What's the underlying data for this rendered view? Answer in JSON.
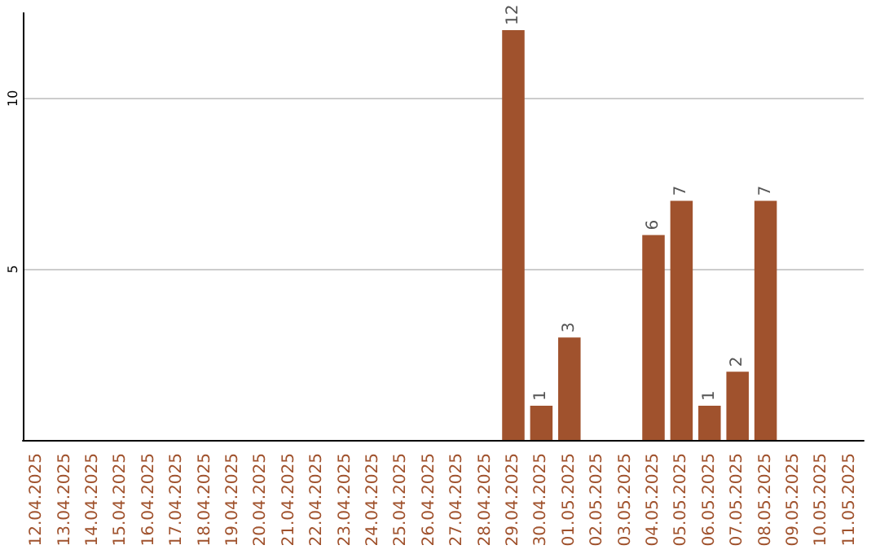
{
  "chart_data": {
    "type": "bar",
    "categories": [
      "12.04.2025",
      "13.04.2025",
      "14.04.2025",
      "15.04.2025",
      "16.04.2025",
      "17.04.2025",
      "18.04.2025",
      "19.04.2025",
      "20.04.2025",
      "21.04.2025",
      "22.04.2025",
      "23.04.2025",
      "24.04.2025",
      "25.04.2025",
      "26.04.2025",
      "27.04.2025",
      "28.04.2025",
      "29.04.2025",
      "30.04.2025",
      "01.05.2025",
      "02.05.2025",
      "03.05.2025",
      "04.05.2025",
      "05.05.2025",
      "06.05.2025",
      "07.05.2025",
      "08.05.2025",
      "09.05.2025",
      "10.05.2025",
      "11.05.2025"
    ],
    "values": [
      0,
      0,
      0,
      0,
      0,
      0,
      0,
      0,
      0,
      0,
      0,
      0,
      0,
      0,
      0,
      0,
      0,
      12,
      1,
      3,
      0,
      0,
      6,
      7,
      1,
      2,
      7,
      0,
      0,
      0
    ],
    "value_labels": [
      null,
      null,
      null,
      null,
      null,
      null,
      null,
      null,
      null,
      null,
      null,
      null,
      null,
      null,
      null,
      null,
      null,
      "12",
      "1",
      "3",
      null,
      null,
      "6",
      "7",
      "1",
      "2",
      "7",
      null,
      null,
      null
    ],
    "color": "#a0522d",
    "ylim": [
      0,
      12.5
    ],
    "yticks": [
      5,
      10
    ],
    "grid": "y"
  }
}
